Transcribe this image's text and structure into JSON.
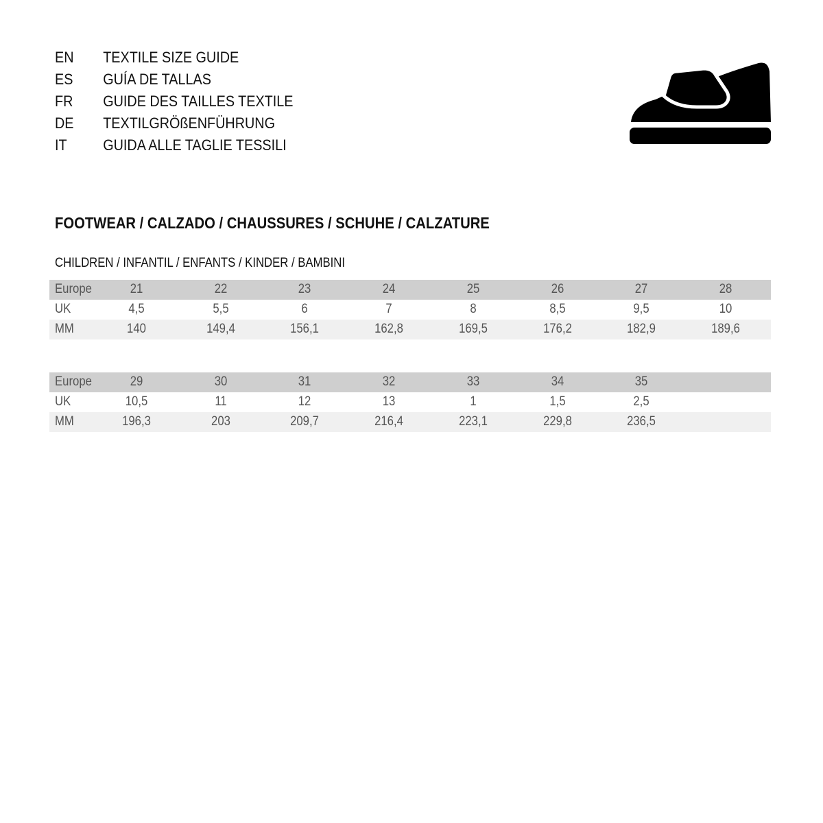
{
  "languages": [
    {
      "code": "EN",
      "title": "TEXTILE SIZE GUIDE"
    },
    {
      "code": "ES",
      "title": "GUÍA DE TALLAS"
    },
    {
      "code": "FR",
      "title": "GUIDE DES TAILLES TEXTILE"
    },
    {
      "code": "DE",
      "title": "TEXTILGRÖßENFÜHRUNG"
    },
    {
      "code": "IT",
      "title": "GUIDA ALLE TAGLIE TESSILI"
    }
  ],
  "icon": "velcro-shoe-icon",
  "section_title": "FOOTWEAR / CALZADO / CHAUSSURES / SCHUHE / CALZATURE",
  "subsection_title": "CHILDREN / INFANTIL / ENFANTS / KINDER / BAMBINI",
  "tables": [
    {
      "rows": [
        {
          "label": "Europe",
          "values": [
            "21",
            "22",
            "23",
            "24",
            "25",
            "26",
            "27",
            "28"
          ]
        },
        {
          "label": "UK",
          "values": [
            "4,5",
            "5,5",
            "6",
            "7",
            "8",
            "8,5",
            "9,5",
            "10"
          ]
        },
        {
          "label": "MM",
          "values": [
            "140",
            "149,4",
            "156,1",
            "162,8",
            "169,5",
            "176,2",
            "182,9",
            "189,6"
          ]
        }
      ]
    },
    {
      "rows": [
        {
          "label": "Europe",
          "values": [
            "29",
            "30",
            "31",
            "32",
            "33",
            "34",
            "35"
          ]
        },
        {
          "label": "UK",
          "values": [
            "10,5",
            "11",
            "12",
            "13",
            "1",
            "1,5",
            "2,5"
          ]
        },
        {
          "label": "MM",
          "values": [
            "196,3",
            "203",
            "209,7",
            "216,4",
            "223,1",
            "229,8",
            "236,5"
          ]
        }
      ]
    }
  ]
}
